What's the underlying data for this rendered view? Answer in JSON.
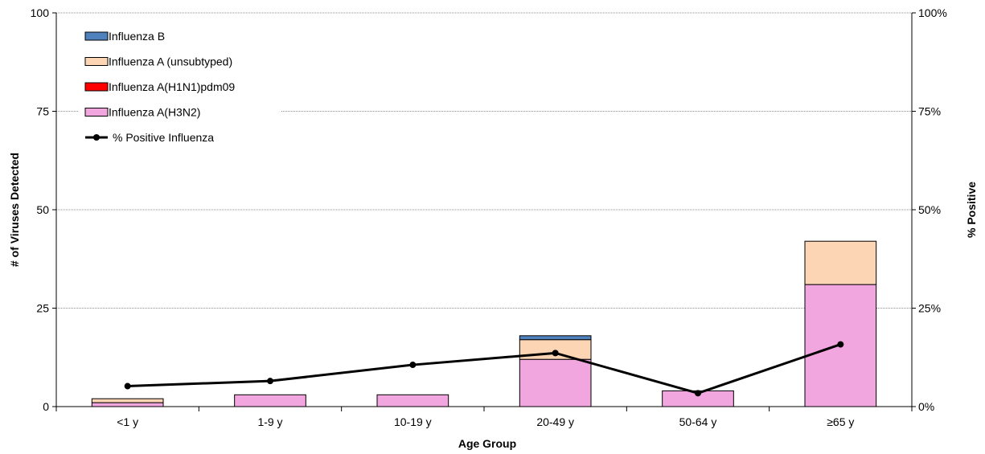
{
  "chart_data": {
    "type": "bar",
    "stacked": true,
    "categories": [
      "<1 y",
      "1-9 y",
      "10-19 y",
      "20-49 y",
      "50-64 y",
      "≥65 y"
    ],
    "series": [
      {
        "name": "Influenza A(H3N2)",
        "color": "#f2a6e0",
        "values": [
          1,
          3,
          3,
          12,
          4,
          31
        ]
      },
      {
        "name": "Influenza A(H1N1)pdm09",
        "color": "#ff0000",
        "values": [
          0,
          0,
          0,
          0,
          0,
          0
        ]
      },
      {
        "name": "Influenza A (unsubtyped)",
        "color": "#fcd5b4",
        "values": [
          1,
          0,
          0,
          5,
          0,
          11
        ]
      },
      {
        "name": "Influenza B",
        "color": "#4f81bd",
        "values": [
          0,
          0,
          0,
          1,
          0,
          0
        ]
      }
    ],
    "line_series": {
      "name": "% Positive Influenza",
      "color": "#000000",
      "axis": "right",
      "values": [
        5.2,
        6.5,
        10.6,
        13.6,
        3.4,
        15.8
      ]
    },
    "xlabel": "Age Group",
    "ylabel": "# of Viruses Detected",
    "ylabel_right": "% Positive",
    "ylim": [
      0,
      100
    ],
    "ylim_right": [
      0,
      100
    ],
    "yticks": [
      "0",
      "25",
      "50",
      "75",
      "100"
    ],
    "yticks_right": [
      "0%",
      "25%",
      "50%",
      "75%",
      "100%"
    ],
    "legend_order": [
      "Influenza B",
      "Influenza A (unsubtyped)",
      "Influenza A(H1N1)pdm09",
      "Influenza A(H3N2)",
      "% Positive Influenza"
    ],
    "legend_position": "top-left",
    "grid": true
  }
}
